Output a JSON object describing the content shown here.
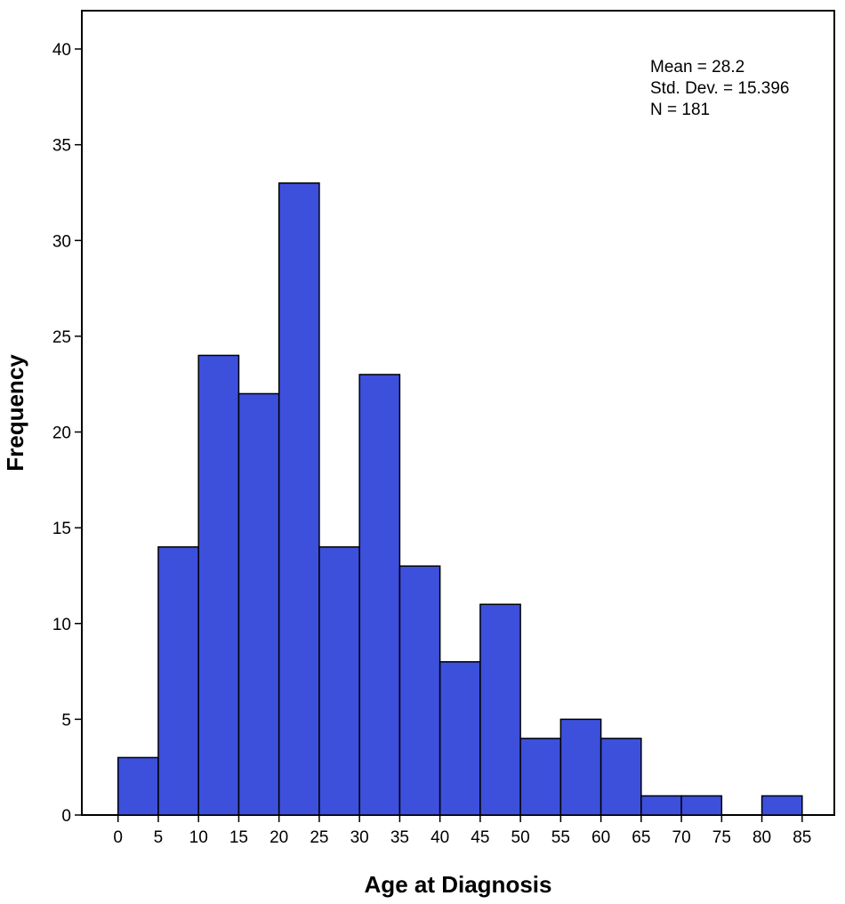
{
  "chart_data": {
    "type": "bar",
    "subtype": "histogram",
    "xlabel": "Age at Diagnosis",
    "ylabel": "Frequency",
    "bin_width": 5,
    "bins": [
      {
        "start": 0,
        "end": 5,
        "value": 3
      },
      {
        "start": 5,
        "end": 10,
        "value": 14
      },
      {
        "start": 10,
        "end": 15,
        "value": 24
      },
      {
        "start": 15,
        "end": 20,
        "value": 22
      },
      {
        "start": 20,
        "end": 25,
        "value": 33
      },
      {
        "start": 25,
        "end": 30,
        "value": 14
      },
      {
        "start": 30,
        "end": 35,
        "value": 23
      },
      {
        "start": 35,
        "end": 40,
        "value": 13
      },
      {
        "start": 40,
        "end": 45,
        "value": 8
      },
      {
        "start": 45,
        "end": 50,
        "value": 11
      },
      {
        "start": 50,
        "end": 55,
        "value": 4
      },
      {
        "start": 55,
        "end": 60,
        "value": 5
      },
      {
        "start": 60,
        "end": 65,
        "value": 4
      },
      {
        "start": 65,
        "end": 70,
        "value": 1
      },
      {
        "start": 70,
        "end": 75,
        "value": 1
      },
      {
        "start": 80,
        "end": 85,
        "value": 1
      }
    ],
    "xticks": [
      0,
      5,
      10,
      15,
      20,
      25,
      30,
      35,
      40,
      45,
      50,
      55,
      60,
      65,
      70,
      75,
      80,
      85
    ],
    "yticks": [
      0,
      5,
      10,
      15,
      20,
      25,
      30,
      35,
      40
    ],
    "xlim": [
      -4.5,
      89
    ],
    "ylim": [
      0,
      42
    ],
    "grid": false,
    "bar_color": "#3c50dc",
    "bar_edge_color": "#000000",
    "stats": {
      "mean_label": "Mean = 28.2",
      "std_label": "Std. Dev. = 15.396",
      "n_label": "N = 181"
    }
  }
}
